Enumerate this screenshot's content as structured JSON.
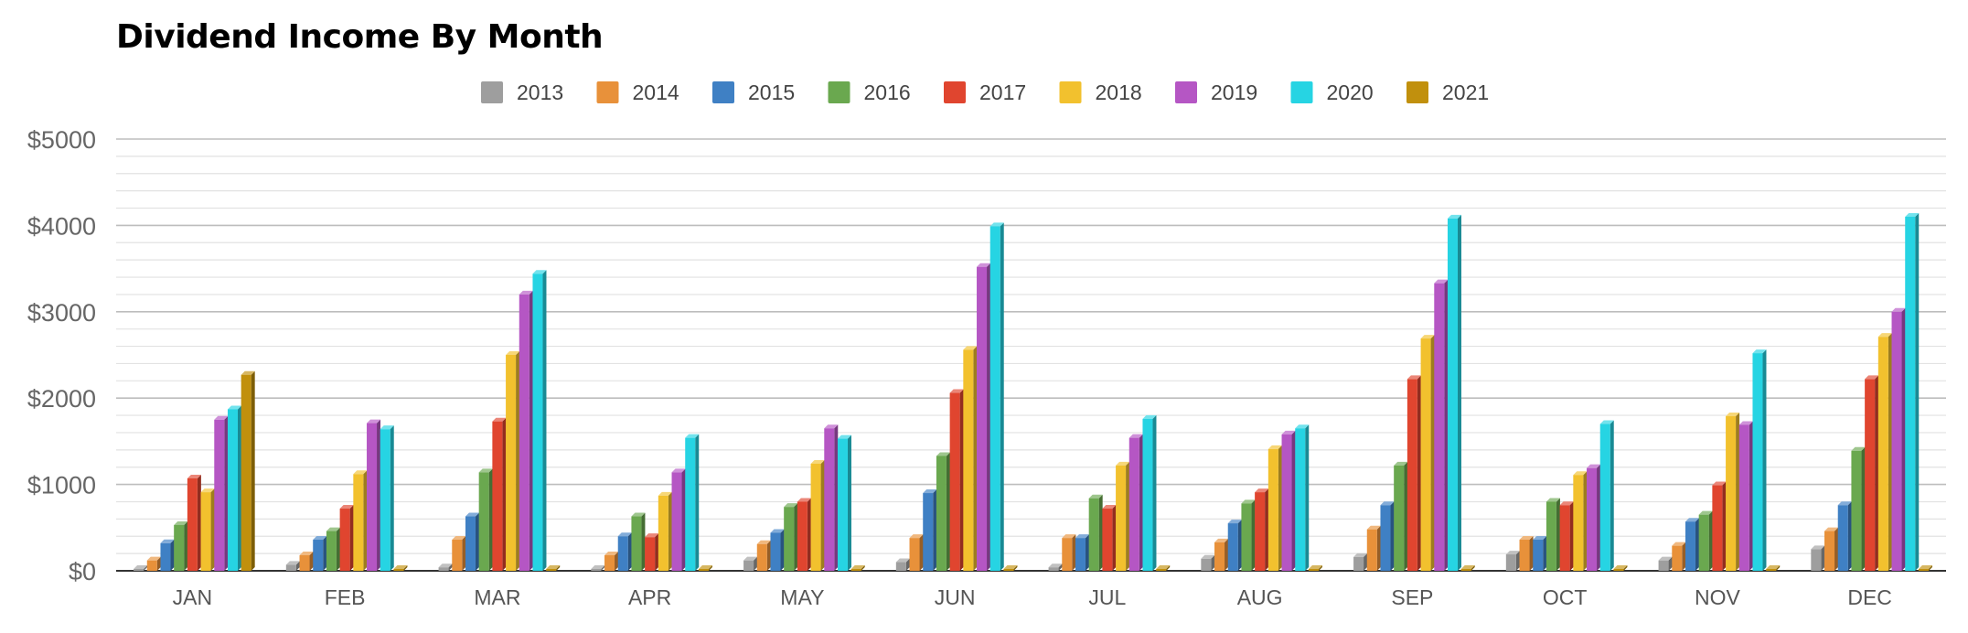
{
  "chart_data": {
    "type": "bar",
    "title": "Dividend Income By Month",
    "xlabel": "",
    "ylabel": "",
    "ylim": [
      0,
      5000
    ],
    "yticks": [
      "$0",
      "$1000",
      "$2000",
      "$3000",
      "$4000",
      "$5000"
    ],
    "ytick_values": [
      0,
      1000,
      2000,
      3000,
      4000,
      5000
    ],
    "grid": true,
    "legend_position": "top",
    "categories": [
      "JAN",
      "FEB",
      "MAR",
      "APR",
      "MAY",
      "JUN",
      "JUL",
      "AUG",
      "SEP",
      "OCT",
      "NOV",
      "DEC"
    ],
    "series": [
      {
        "name": "2013",
        "color": "#9e9e9e",
        "values": [
          0,
          70,
          40,
          0,
          120,
          100,
          40,
          140,
          160,
          190,
          120,
          250
        ]
      },
      {
        "name": "2014",
        "color": "#e8913a",
        "values": [
          120,
          180,
          360,
          180,
          310,
          380,
          380,
          330,
          480,
          360,
          290,
          460
        ]
      },
      {
        "name": "2015",
        "color": "#3f80c4",
        "values": [
          320,
          360,
          630,
          400,
          440,
          900,
          380,
          550,
          760,
          360,
          570,
          760
        ]
      },
      {
        "name": "2016",
        "color": "#6aa84f",
        "values": [
          530,
          460,
          1140,
          630,
          740,
          1330,
          840,
          780,
          1220,
          800,
          650,
          1390
        ]
      },
      {
        "name": "2017",
        "color": "#e0452f",
        "values": [
          1070,
          720,
          1730,
          390,
          800,
          2060,
          720,
          910,
          2220,
          760,
          990,
          2220
        ]
      },
      {
        "name": "2018",
        "color": "#f2c12e",
        "values": [
          910,
          1120,
          2500,
          870,
          1240,
          2560,
          1220,
          1410,
          2690,
          1110,
          1790,
          2710
        ]
      },
      {
        "name": "2019",
        "color": "#b556c4",
        "values": [
          1750,
          1710,
          3200,
          1140,
          1650,
          3520,
          1540,
          1580,
          3330,
          1190,
          1690,
          3000
        ]
      },
      {
        "name": "2020",
        "color": "#26d4e3",
        "values": [
          1870,
          1640,
          3440,
          1540,
          1530,
          3990,
          1760,
          1650,
          4080,
          1700,
          2520,
          4100
        ]
      },
      {
        "name": "2021",
        "color": "#c1900d",
        "values": [
          2270,
          0,
          0,
          0,
          0,
          0,
          0,
          0,
          0,
          0,
          0,
          0
        ]
      }
    ]
  }
}
